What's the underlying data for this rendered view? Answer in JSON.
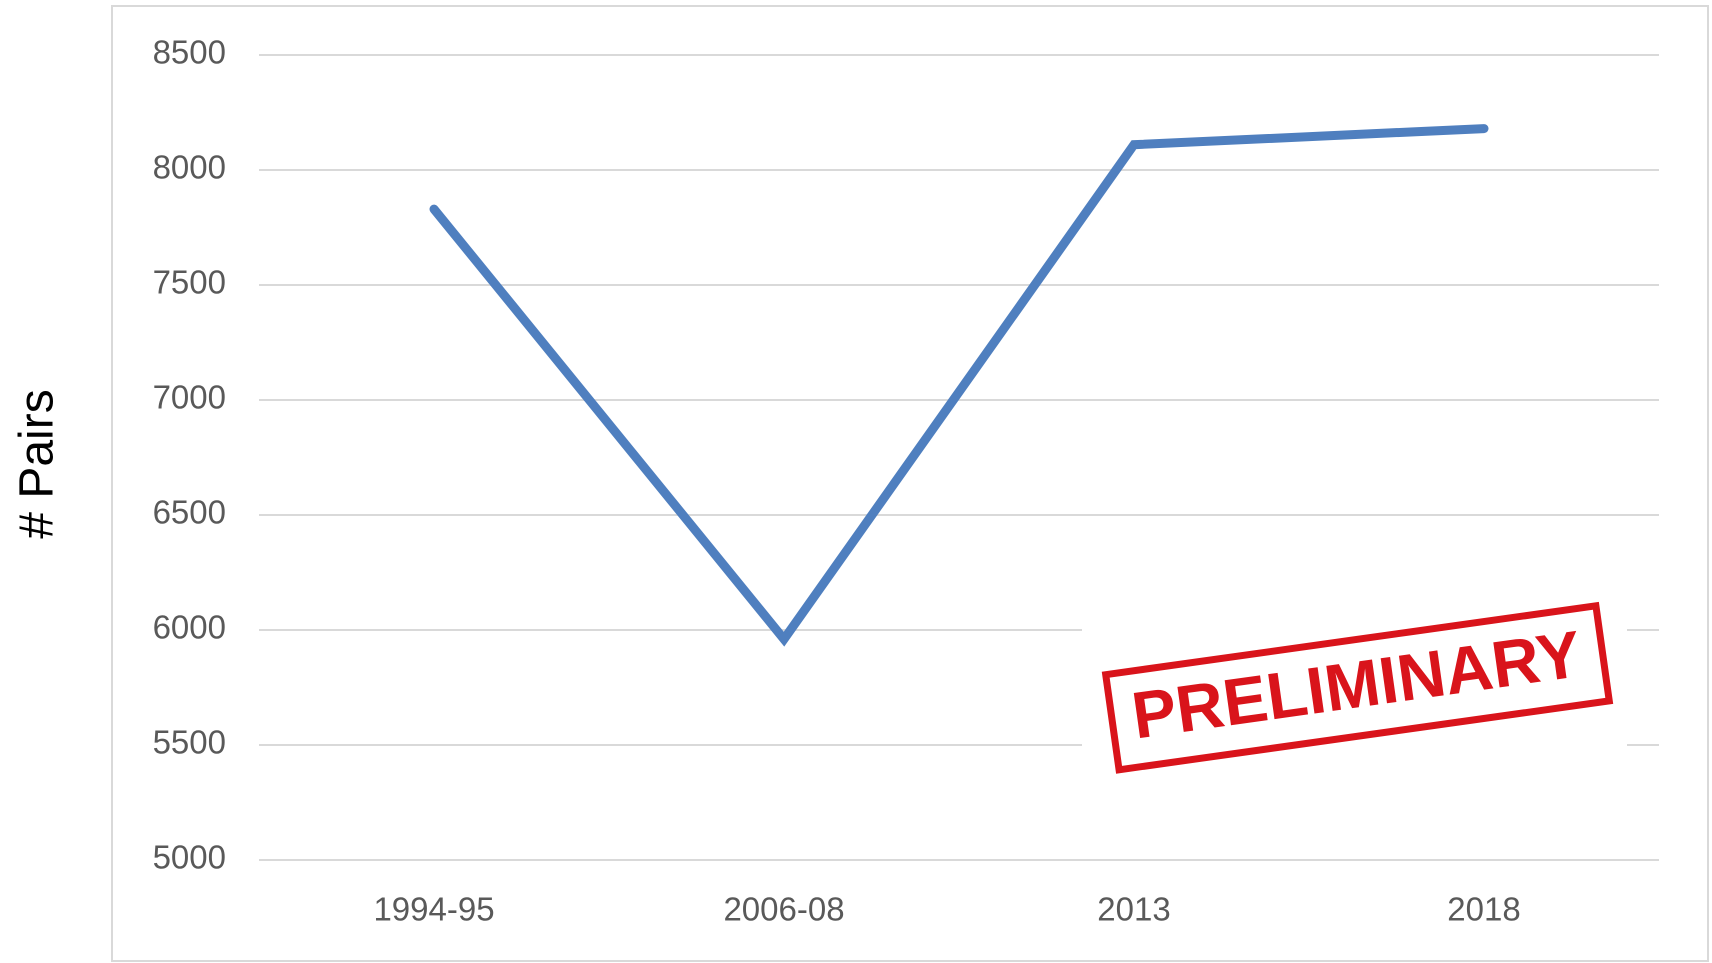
{
  "chart_data": {
    "type": "line",
    "y_label": "# Pairs",
    "annotation": "PRELIMINARY",
    "categories": [
      "1994-95",
      "2006-08",
      "2013",
      "2018"
    ],
    "series": [
      {
        "name": "Pairs",
        "color": "#4f7fbf",
        "values": [
          7830,
          5960,
          8110,
          8180
        ]
      }
    ],
    "ylim": [
      5000,
      8500
    ],
    "yticks": [
      5000,
      5500,
      6000,
      6500,
      7000,
      7500,
      8000,
      8500
    ],
    "grid": true
  }
}
